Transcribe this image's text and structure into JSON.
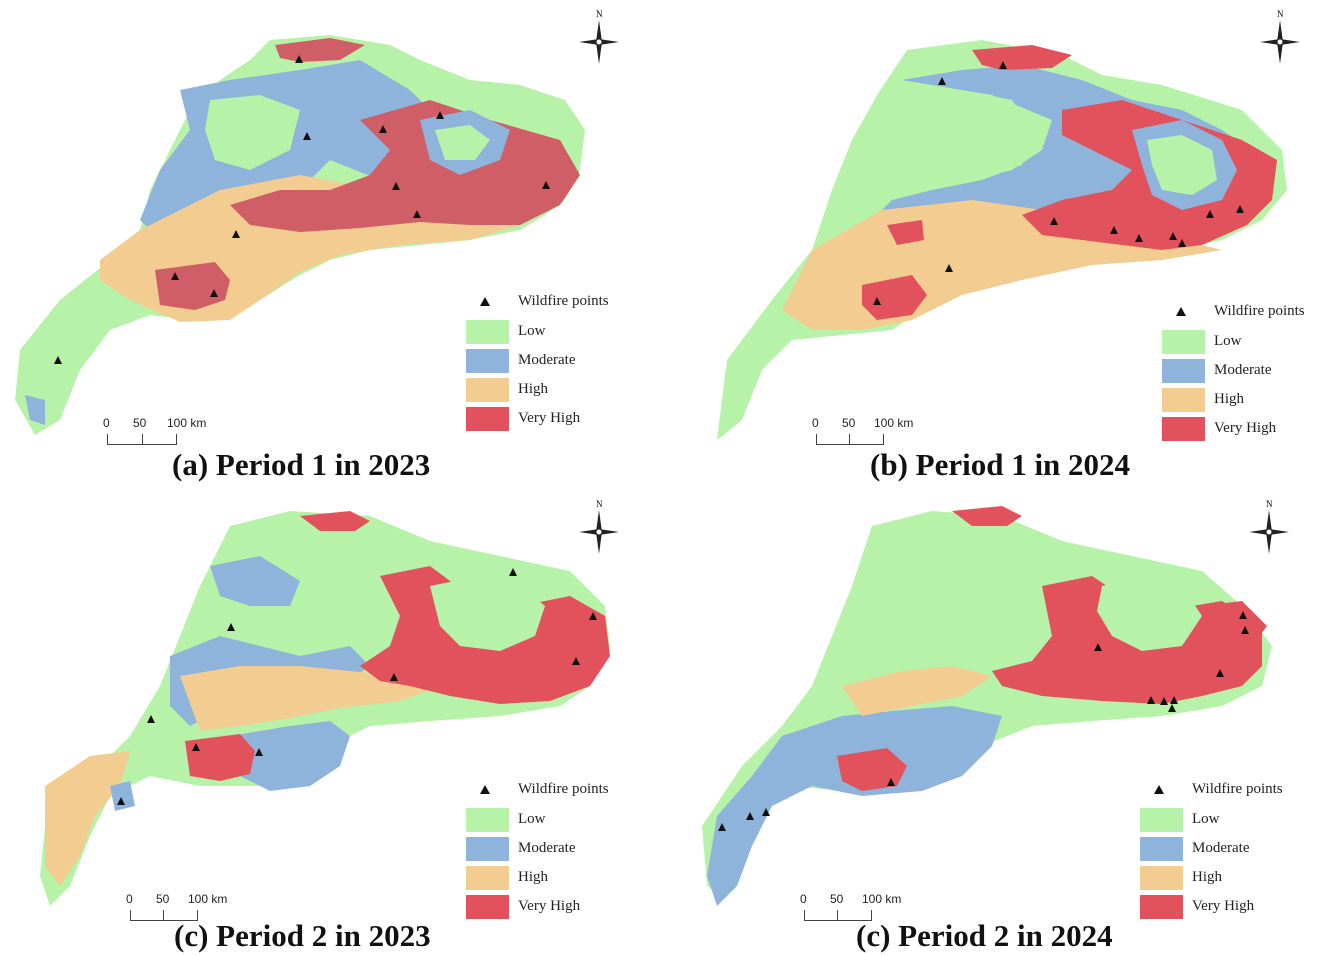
{
  "colors": {
    "low": "#b6f2a8",
    "moderate": "#8fb4dc",
    "high": "#f2cc90",
    "very_high": "#e2525c",
    "very_high_dark": "#cf5e66",
    "wildfire_point": "#111111"
  },
  "legend": {
    "wildfire_label": "Wildfire points",
    "classes": [
      "Low",
      "Moderate",
      "High",
      "Very High"
    ]
  },
  "scale_bar": {
    "labels": [
      "0",
      "50",
      "100 km"
    ]
  },
  "north_label": "N",
  "panels": [
    {
      "caption": "(a) Period 1 in 2023",
      "dominant_class": "mixed",
      "wildfire_points_count": 11
    },
    {
      "caption": "(b) Period 1 in 2024",
      "dominant_class": "low",
      "wildfire_points_count": 11
    },
    {
      "caption": "(c) Period 2 in 2023",
      "dominant_class": "low",
      "wildfire_points_count": 9
    },
    {
      "caption": "(c) Period 2 in 2024",
      "dominant_class": "low",
      "wildfire_points_count": 12
    }
  ]
}
